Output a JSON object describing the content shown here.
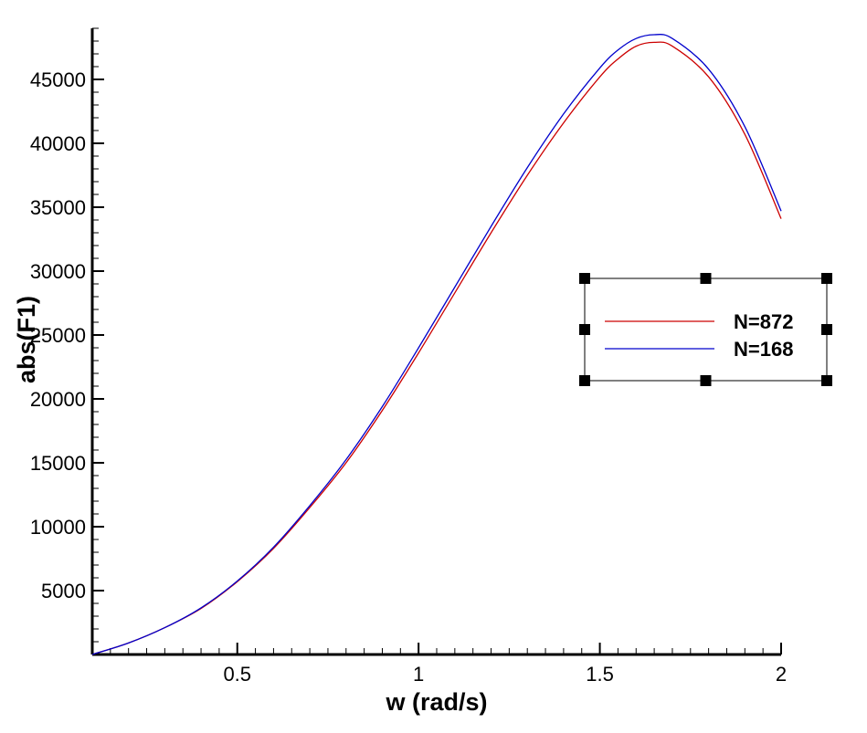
{
  "chart_data": {
    "type": "line",
    "xlabel": "w (rad/s)",
    "ylabel": "abs(F1)",
    "xlim": [
      0.1,
      2.0
    ],
    "ylim": [
      0,
      49000
    ],
    "x_ticks": [
      0.5,
      1,
      1.5,
      2
    ],
    "x_tick_labels": [
      "0.5",
      "1",
      "1.5",
      "2"
    ],
    "y_ticks": [
      5000,
      10000,
      15000,
      20000,
      25000,
      30000,
      35000,
      40000,
      45000
    ],
    "y_tick_labels": [
      "5000",
      "10000",
      "15000",
      "20000",
      "25000",
      "30000",
      "35000",
      "40000",
      "45000"
    ],
    "grid": false,
    "legend_position": "right",
    "series": [
      {
        "name": "N=872",
        "color": "#cc0000",
        "x": [
          0.1,
          0.2,
          0.3,
          0.4,
          0.5,
          0.6,
          0.7,
          0.8,
          0.9,
          1.0,
          1.1,
          1.2,
          1.3,
          1.4,
          1.5,
          1.55,
          1.6,
          1.65,
          1.7,
          1.8,
          1.9,
          2.0
        ],
        "y": [
          0,
          900,
          2100,
          3600,
          5700,
          8300,
          11500,
          15000,
          19100,
          23600,
          28300,
          33000,
          37500,
          41600,
          45200,
          46600,
          47600,
          47900,
          47600,
          45200,
          40700,
          34100
        ]
      },
      {
        "name": "N=168",
        "color": "#0000cc",
        "x": [
          0.1,
          0.2,
          0.3,
          0.4,
          0.5,
          0.6,
          0.7,
          0.8,
          0.9,
          1.0,
          1.1,
          1.2,
          1.3,
          1.4,
          1.5,
          1.55,
          1.6,
          1.65,
          1.7,
          1.8,
          1.9,
          2.0
        ],
        "y": [
          0,
          900,
          2100,
          3650,
          5750,
          8400,
          11650,
          15250,
          19400,
          24000,
          28750,
          33500,
          38100,
          42300,
          45900,
          47300,
          48200,
          48500,
          48200,
          45800,
          41300,
          34700
        ]
      }
    ]
  }
}
